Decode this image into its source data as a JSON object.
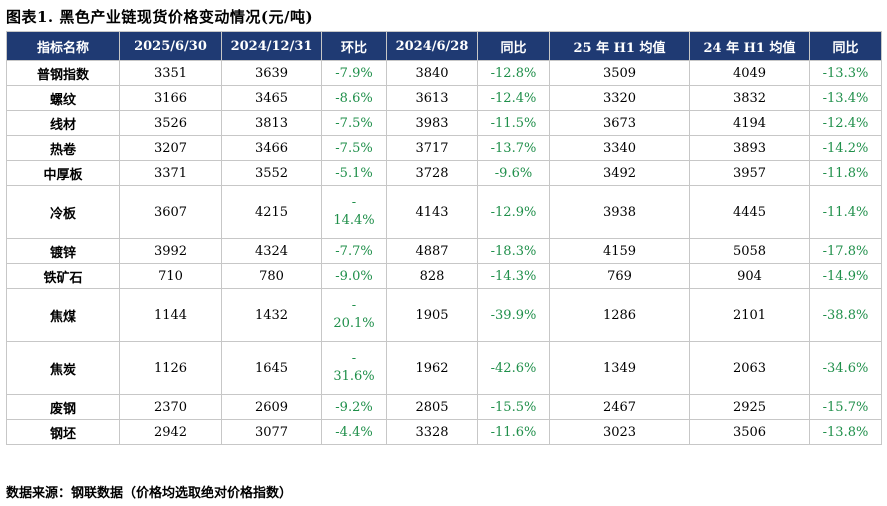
{
  "title": "图表1.  黑色产业链现货价格变动情况(元/吨)",
  "headers": [
    "指标名称",
    "2025/6/30",
    "2024/12/31",
    "环比",
    "2024/6/28",
    "同比",
    "25 年 H1 均值",
    "24 年 H1 均值",
    "同比"
  ],
  "rows": [
    {
      "name": "普钢指数",
      "v1": "3351",
      "v2": "3639",
      "hb": "-7.9%",
      "v3": "3840",
      "tb": "-12.8%",
      "h125": "3509",
      "h124": "4049",
      "tb2": "-13.3%"
    },
    {
      "name": "螺纹",
      "v1": "3166",
      "v2": "3465",
      "hb": "-8.6%",
      "v3": "3613",
      "tb": "-12.4%",
      "h125": "3320",
      "h124": "3832",
      "tb2": "-13.4%"
    },
    {
      "name": "线材",
      "v1": "3526",
      "v2": "3813",
      "hb": "-7.5%",
      "v3": "3983",
      "tb": "-11.5%",
      "h125": "3673",
      "h124": "4194",
      "tb2": "-12.4%"
    },
    {
      "name": "热卷",
      "v1": "3207",
      "v2": "3466",
      "hb": "-7.5%",
      "v3": "3717",
      "tb": "-13.7%",
      "h125": "3340",
      "h124": "3893",
      "tb2": "-14.2%"
    },
    {
      "name": "中厚板",
      "v1": "3371",
      "v2": "3552",
      "hb": "-5.1%",
      "v3": "3728",
      "tb": "-9.6%",
      "h125": "3492",
      "h124": "3957",
      "tb2": "-11.8%"
    },
    {
      "name": "冷板",
      "v1": "3607",
      "v2": "4215",
      "hb_line1": "-",
      "hb_line2": "14.4%",
      "v3": "4143",
      "tb": "-12.9%",
      "h125": "3938",
      "h124": "4445",
      "tb2": "-11.4%"
    },
    {
      "name": "镀锌",
      "v1": "3992",
      "v2": "4324",
      "hb": "-7.7%",
      "v3": "4887",
      "tb": "-18.3%",
      "h125": "4159",
      "h124": "5058",
      "tb2": "-17.8%"
    },
    {
      "name": "铁矿石",
      "v1": "710",
      "v2": "780",
      "hb": "-9.0%",
      "v3": "828",
      "tb": "-14.3%",
      "h125": "769",
      "h124": "904",
      "tb2": "-14.9%"
    },
    {
      "name": "焦煤",
      "v1": "1144",
      "v2": "1432",
      "hb_line1": "-",
      "hb_line2": "20.1%",
      "v3": "1905",
      "tb": "-39.9%",
      "h125": "1286",
      "h124": "2101",
      "tb2": "-38.8%"
    },
    {
      "name": "焦炭",
      "v1": "1126",
      "v2": "1645",
      "hb_line1": "-",
      "hb_line2": "31.6%",
      "v3": "1962",
      "tb": "-42.6%",
      "h125": "1349",
      "h124": "2063",
      "tb2": "-34.6%"
    },
    {
      "name": "废钢",
      "v1": "2370",
      "v2": "2609",
      "hb": "-9.2%",
      "v3": "2805",
      "tb": "-15.5%",
      "h125": "2467",
      "h124": "2925",
      "tb2": "-15.7%"
    },
    {
      "name": "钢坯",
      "v1": "2942",
      "v2": "3077",
      "hb": "-4.4%",
      "v3": "3328",
      "tb": "-11.6%",
      "h125": "3023",
      "h124": "3506",
      "tb2": "-13.8%"
    }
  ],
  "footer": "数据来源：钢联数据（价格均选取绝对价格指数）",
  "colors": {
    "header_bg": "#1f3a73",
    "neg": "#1f8f4a",
    "border": "#c7c7c7"
  }
}
